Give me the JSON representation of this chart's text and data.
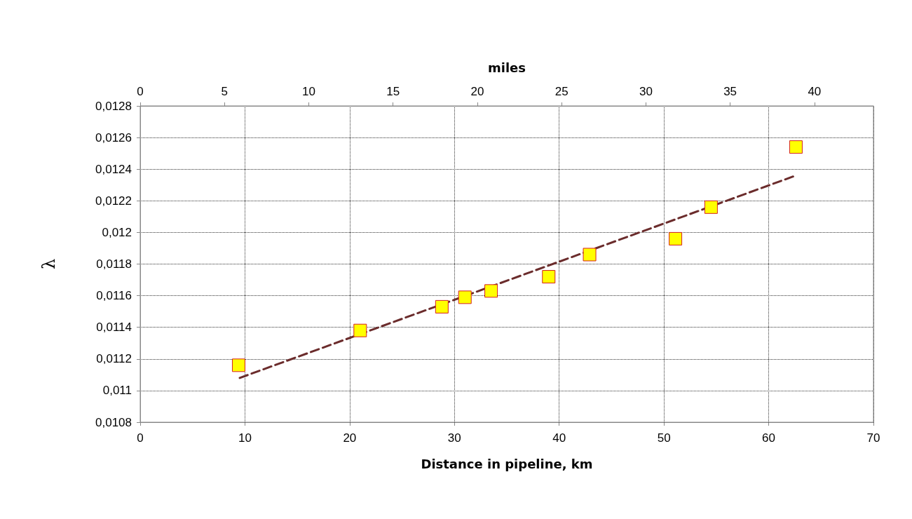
{
  "chart_data": {
    "type": "scatter",
    "xlabel": "Distance in pipeline, km",
    "ylabel": "λ",
    "x2label": "miles",
    "xlim": [
      0,
      70
    ],
    "xticks": [
      0,
      10,
      20,
      30,
      40,
      50,
      60,
      70
    ],
    "x2lim": [
      0,
      43.5
    ],
    "x2ticks": [
      0,
      5,
      10,
      15,
      20,
      25,
      30,
      35,
      40
    ],
    "ylim": [
      0.0108,
      0.0128
    ],
    "yticks": [
      {
        "value": 0.0108,
        "label": "0,0108"
      },
      {
        "value": 0.011,
        "label": "0,011"
      },
      {
        "value": 0.0112,
        "label": "0,0112"
      },
      {
        "value": 0.0114,
        "label": "0,0114"
      },
      {
        "value": 0.0116,
        "label": "0,0116"
      },
      {
        "value": 0.0118,
        "label": "0,0118"
      },
      {
        "value": 0.012,
        "label": "0,012"
      },
      {
        "value": 0.0122,
        "label": "0,0122"
      },
      {
        "value": 0.0124,
        "label": "0,0124"
      },
      {
        "value": 0.0126,
        "label": "0,0126"
      },
      {
        "value": 0.0128,
        "label": "0,0128"
      }
    ],
    "grid": true,
    "marker": "square",
    "series": [
      {
        "color": "#ffff00",
        "x": [
          9.4,
          21.0,
          28.8,
          31.0,
          33.5,
          39.0,
          42.9,
          51.1,
          54.5,
          62.6
        ],
        "values": [
          0.01116,
          0.01138,
          0.01153,
          0.01159,
          0.01163,
          0.01172,
          0.01186,
          0.01196,
          0.01216,
          0.01254
        ]
      },
      {
        "type": "line",
        "color": "#6b2c2c",
        "line_style": "dashed",
        "marker": "none",
        "x": [
          9.5,
          62.6
        ],
        "values": [
          0.01108,
          0.01236
        ]
      }
    ]
  }
}
